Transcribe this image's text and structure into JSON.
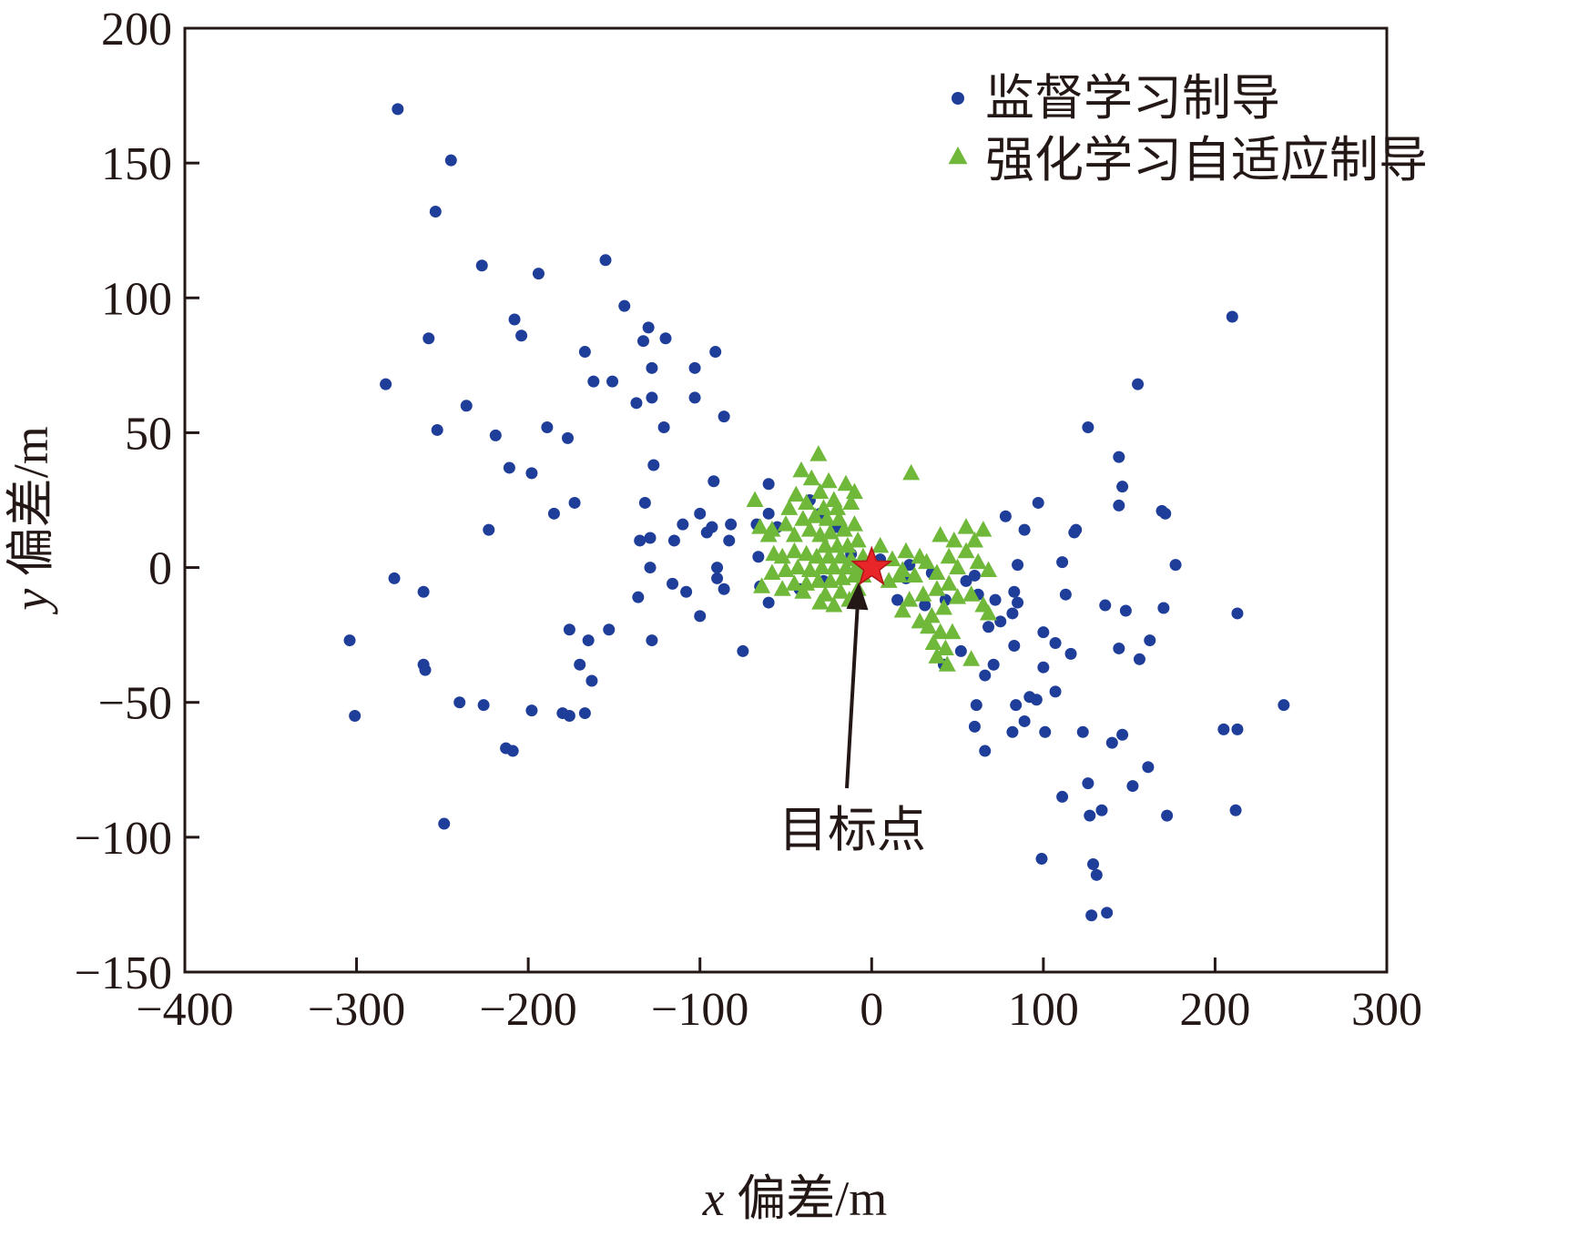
{
  "chart_data": {
    "type": "scatter",
    "xlabel_var": "x",
    "xlabel_text": " 偏差/m",
    "ylabel_var": "y",
    "ylabel_text": " 偏差/m",
    "xlim": [
      -400,
      300
    ],
    "ylim": [
      -150,
      200
    ],
    "xticks": [
      -400,
      -300,
      -200,
      -100,
      0,
      100,
      200,
      300
    ],
    "yticks": [
      -150,
      -100,
      -50,
      0,
      50,
      100,
      150,
      200
    ],
    "xtick_labels": [
      "−400",
      "−300",
      "−200",
      "−100",
      "0",
      "100",
      "200",
      "300"
    ],
    "ytick_labels": [
      "−150",
      "−100",
      "−50",
      "0",
      "50",
      "100",
      "150",
      "200"
    ],
    "grid": false,
    "legend_position": "top-right",
    "series": [
      {
        "name": "监督学习制导",
        "marker": "circle",
        "color": "#1f3e9a",
        "points": [
          [
            -276,
            170
          ],
          [
            -245,
            151
          ],
          [
            -254,
            132
          ],
          [
            -227,
            112
          ],
          [
            -194,
            109
          ],
          [
            -155,
            114
          ],
          [
            -208,
            92
          ],
          [
            -204,
            86
          ],
          [
            -258,
            85
          ],
          [
            -283,
            68
          ],
          [
            -236,
            60
          ],
          [
            -253,
            51
          ],
          [
            -219,
            49
          ],
          [
            -189,
            52
          ],
          [
            -177,
            48
          ],
          [
            -211,
            37
          ],
          [
            -198,
            35
          ],
          [
            -173,
            24
          ],
          [
            -185,
            20
          ],
          [
            -223,
            14
          ],
          [
            -278,
            -4
          ],
          [
            -261,
            -9
          ],
          [
            -304,
            -27
          ],
          [
            -301,
            -55
          ],
          [
            -261,
            -36
          ],
          [
            -260,
            -38
          ],
          [
            -240,
            -50
          ],
          [
            -226,
            -51
          ],
          [
            -213,
            -67
          ],
          [
            -209,
            -68
          ],
          [
            -198,
            -53
          ],
          [
            -180,
            -54
          ],
          [
            -176,
            -55
          ],
          [
            -167,
            -54
          ],
          [
            -249,
            -95
          ],
          [
            -176,
            -23
          ],
          [
            -153,
            -23
          ],
          [
            -165,
            -27
          ],
          [
            -170,
            -36
          ],
          [
            -163,
            -42
          ],
          [
            -144,
            97
          ],
          [
            -130,
            89
          ],
          [
            -133,
            84
          ],
          [
            -120,
            85
          ],
          [
            -167,
            80
          ],
          [
            -91,
            80
          ],
          [
            -128,
            74
          ],
          [
            -103,
            74
          ],
          [
            -162,
            69
          ],
          [
            -151,
            69
          ],
          [
            -128,
            63
          ],
          [
            -103,
            63
          ],
          [
            -137,
            61
          ],
          [
            -86,
            56
          ],
          [
            -121,
            52
          ],
          [
            -127,
            38
          ],
          [
            -92,
            32
          ],
          [
            -100,
            20
          ],
          [
            -132,
            24
          ],
          [
            -110,
            16
          ],
          [
            -96,
            13
          ],
          [
            -93,
            15
          ],
          [
            -82,
            16
          ],
          [
            -135,
            10
          ],
          [
            -129,
            11
          ],
          [
            -115,
            10
          ],
          [
            -83,
            10
          ],
          [
            -129,
            0
          ],
          [
            -90,
            0
          ],
          [
            -90,
            -4
          ],
          [
            -116,
            -6
          ],
          [
            -108,
            -9
          ],
          [
            -86,
            -8
          ],
          [
            -136,
            -11
          ],
          [
            -100,
            -18
          ],
          [
            -128,
            -27
          ],
          [
            -75,
            -31
          ],
          [
            -60,
            31
          ],
          [
            -67,
            16
          ],
          [
            -55,
            15
          ],
          [
            -60,
            20
          ],
          [
            -66,
            4
          ],
          [
            -65,
            -7
          ],
          [
            -60,
            -13
          ],
          [
            -36,
            25
          ],
          [
            -30,
            20
          ],
          [
            -20,
            15
          ],
          [
            -42,
            -8
          ],
          [
            -28,
            -5
          ],
          [
            -12,
            5
          ],
          [
            5,
            3
          ],
          [
            22,
            1
          ],
          [
            35,
            -2
          ],
          [
            43,
            -12
          ],
          [
            55,
            -5
          ],
          [
            60,
            -3
          ],
          [
            62,
            -10
          ],
          [
            68,
            -22
          ],
          [
            72,
            -12
          ],
          [
            75,
            -20
          ],
          [
            66,
            -40
          ],
          [
            71,
            -36
          ],
          [
            61,
            -51
          ],
          [
            60,
            -59
          ],
          [
            52,
            -31
          ],
          [
            42,
            -36
          ],
          [
            31,
            -14
          ],
          [
            20,
            -4
          ],
          [
            15,
            -12
          ],
          [
            97,
            24
          ],
          [
            78,
            19
          ],
          [
            89,
            14
          ],
          [
            85,
            1
          ],
          [
            83,
            -9
          ],
          [
            85,
            -13
          ],
          [
            82,
            -17
          ],
          [
            118,
            13
          ],
          [
            119,
            14
          ],
          [
            111,
            2
          ],
          [
            113,
            -10
          ],
          [
            100,
            -24
          ],
          [
            107,
            -28
          ],
          [
            116,
            -32
          ],
          [
            100,
            -37
          ],
          [
            83,
            -29
          ],
          [
            92,
            -48
          ],
          [
            84,
            -51
          ],
          [
            96,
            -49
          ],
          [
            89,
            -57
          ],
          [
            82,
            -61
          ],
          [
            101,
            -61
          ],
          [
            107,
            -46
          ],
          [
            66,
            -68
          ],
          [
            123,
            -61
          ],
          [
            111,
            -85
          ],
          [
            126,
            -80
          ],
          [
            127,
            -92
          ],
          [
            134,
            -90
          ],
          [
            99,
            -108
          ],
          [
            129,
            -110
          ],
          [
            131,
            -114
          ],
          [
            128,
            -129
          ],
          [
            137,
            -128
          ],
          [
            126,
            52
          ],
          [
            155,
            68
          ],
          [
            144,
            41
          ],
          [
            146,
            30
          ],
          [
            144,
            23
          ],
          [
            169,
            21
          ],
          [
            171,
            20
          ],
          [
            177,
            1
          ],
          [
            136,
            -14
          ],
          [
            148,
            -16
          ],
          [
            170,
            -15
          ],
          [
            162,
            -27
          ],
          [
            156,
            -34
          ],
          [
            144,
            -30
          ],
          [
            146,
            -62
          ],
          [
            140,
            -65
          ],
          [
            161,
            -74
          ],
          [
            152,
            -81
          ],
          [
            172,
            -92
          ],
          [
            210,
            93
          ],
          [
            213,
            -17
          ],
          [
            205,
            -60
          ],
          [
            213,
            -60
          ],
          [
            212,
            -90
          ],
          [
            240,
            -51
          ]
        ]
      },
      {
        "name": "强化学习自适应制导",
        "marker": "triangle",
        "color": "#6fb83a",
        "points": [
          [
            -31,
            42
          ],
          [
            -41,
            36
          ],
          [
            -35,
            33
          ],
          [
            -25,
            32
          ],
          [
            -15,
            31
          ],
          [
            -10,
            28
          ],
          [
            -30,
            28
          ],
          [
            -22,
            25
          ],
          [
            -44,
            27
          ],
          [
            -48,
            22
          ],
          [
            -38,
            24
          ],
          [
            -28,
            22
          ],
          [
            -20,
            22
          ],
          [
            -12,
            24
          ],
          [
            -33,
            19
          ],
          [
            -26,
            18
          ],
          [
            -19,
            18
          ],
          [
            -40,
            18
          ],
          [
            -50,
            16
          ],
          [
            -58,
            14
          ],
          [
            -65,
            15
          ],
          [
            -68,
            25
          ],
          [
            -60,
            12
          ],
          [
            -45,
            12
          ],
          [
            -36,
            14
          ],
          [
            -30,
            12
          ],
          [
            -24,
            13
          ],
          [
            -16,
            14
          ],
          [
            -10,
            16
          ],
          [
            -27,
            8
          ],
          [
            -20,
            8
          ],
          [
            -14,
            8
          ],
          [
            -8,
            10
          ],
          [
            -45,
            6
          ],
          [
            -52,
            4
          ],
          [
            -57,
            5
          ],
          [
            -38,
            5
          ],
          [
            -32,
            4
          ],
          [
            -25,
            4
          ],
          [
            -18,
            4
          ],
          [
            -12,
            3
          ],
          [
            -5,
            4
          ],
          [
            -3,
            1
          ],
          [
            -9,
            0
          ],
          [
            -15,
            0
          ],
          [
            -22,
            0
          ],
          [
            -29,
            0
          ],
          [
            -36,
            -1
          ],
          [
            -43,
            0
          ],
          [
            -50,
            -1
          ],
          [
            -58,
            -2
          ],
          [
            -64,
            -7
          ],
          [
            -45,
            -6
          ],
          [
            -38,
            -6
          ],
          [
            -31,
            -5
          ],
          [
            -24,
            -5
          ],
          [
            -17,
            -4
          ],
          [
            -10,
            -3
          ],
          [
            -5,
            -3
          ],
          [
            -52,
            -8
          ],
          [
            -40,
            -9
          ],
          [
            -27,
            -10
          ],
          [
            -18,
            -9
          ],
          [
            -8,
            -8
          ],
          [
            -30,
            -13
          ],
          [
            -22,
            -14
          ],
          [
            -13,
            -12
          ],
          [
            5,
            8
          ],
          [
            12,
            3
          ],
          [
            18,
            -1
          ],
          [
            25,
            -3
          ],
          [
            32,
            2
          ],
          [
            38,
            -2
          ],
          [
            45,
            4
          ],
          [
            50,
            0
          ],
          [
            55,
            6
          ],
          [
            60,
            10
          ],
          [
            65,
            14
          ],
          [
            55,
            15
          ],
          [
            40,
            12
          ],
          [
            48,
            10
          ],
          [
            62,
            2
          ],
          [
            68,
            -1
          ],
          [
            45,
            -6
          ],
          [
            38,
            -8
          ],
          [
            30,
            -10
          ],
          [
            22,
            -12
          ],
          [
            18,
            -16
          ],
          [
            35,
            -18
          ],
          [
            42,
            -15
          ],
          [
            50,
            -11
          ],
          [
            58,
            -10
          ],
          [
            65,
            -14
          ],
          [
            68,
            -17
          ],
          [
            28,
            -20
          ],
          [
            33,
            -22
          ],
          [
            40,
            -24
          ],
          [
            47,
            -24
          ],
          [
            36,
            -28
          ],
          [
            43,
            -30
          ],
          [
            38,
            -33
          ],
          [
            44,
            -36
          ],
          [
            58,
            -34
          ],
          [
            23,
            35
          ],
          [
            16,
            -3
          ],
          [
            10,
            -5
          ],
          [
            28,
            4
          ],
          [
            20,
            6
          ]
        ]
      }
    ],
    "target_point": {
      "x": 0,
      "y": 0,
      "marker": "star",
      "color": "#e8262a"
    },
    "annotation": {
      "text": "目标点",
      "points_to": [
        0,
        0
      ]
    }
  }
}
